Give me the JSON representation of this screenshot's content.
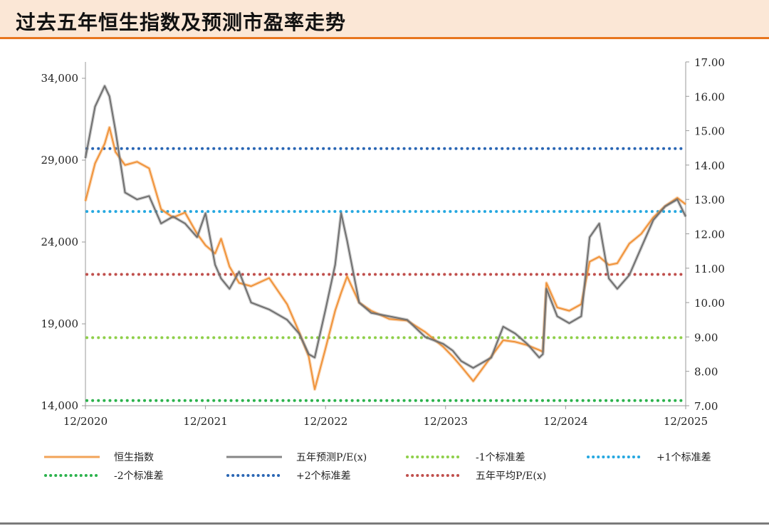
{
  "title": "过去五年恒生指数及预测市盈率走势",
  "chart_data": {
    "type": "line",
    "x_ticks": [
      "12/2020",
      "12/2021",
      "12/2022",
      "12/2023",
      "12/2024",
      "12/2025"
    ],
    "left_axis": {
      "ylim": [
        14000,
        35000
      ],
      "ticks": [
        "14,000",
        "19,000",
        "24,000",
        "29,000",
        "34,000"
      ],
      "tick_values": [
        14000,
        19000,
        24000,
        29000,
        34000
      ]
    },
    "right_axis": {
      "ylim": [
        7.0,
        17.0
      ],
      "ticks": [
        "7.00",
        "8.00",
        "9.00",
        "10.00",
        "11.00",
        "12.00",
        "13.00",
        "14.00",
        "15.00",
        "16.00",
        "17.00"
      ],
      "tick_values": [
        7,
        8,
        9,
        10,
        11,
        12,
        13,
        14,
        15,
        16,
        17
      ]
    },
    "series": [
      {
        "name": "恒生指数",
        "axis": "left",
        "color": "#f0933a",
        "x": [
          2020.92,
          2021.0,
          2021.08,
          2021.12,
          2021.17,
          2021.25,
          2021.35,
          2021.45,
          2021.55,
          2021.65,
          2021.75,
          2021.85,
          2021.92,
          2022.0,
          2022.05,
          2022.12,
          2022.2,
          2022.3,
          2022.45,
          2022.6,
          2022.7,
          2022.78,
          2022.83,
          2022.92,
          2023.0,
          2023.05,
          2023.1,
          2023.2,
          2023.3,
          2023.45,
          2023.6,
          2023.75,
          2023.9,
          2023.98,
          2024.05,
          2024.15,
          2024.3,
          2024.4,
          2024.5,
          2024.6,
          2024.7,
          2024.73,
          2024.76,
          2024.85,
          2024.95,
          2025.05,
          2025.12,
          2025.2,
          2025.28,
          2025.35,
          2025.45,
          2025.55,
          2025.65,
          2025.75,
          2025.85,
          2025.92
        ],
        "values": [
          26500,
          28800,
          30000,
          31000,
          29500,
          28700,
          28900,
          28500,
          26000,
          25500,
          25800,
          24500,
          23800,
          23300,
          24200,
          22500,
          21500,
          21300,
          21800,
          20200,
          18500,
          17000,
          15000,
          17500,
          19800,
          20900,
          21900,
          20300,
          19800,
          19300,
          19200,
          18500,
          17600,
          17000,
          16400,
          15500,
          17000,
          18000,
          17900,
          17700,
          17400,
          17300,
          21500,
          20000,
          19800,
          20200,
          22800,
          23100,
          22600,
          22700,
          23900,
          24500,
          25500,
          26200,
          26700,
          26300
        ]
      },
      {
        "name": "五年预测P/E(x)",
        "axis": "right",
        "color": "#707070",
        "x": [
          2020.92,
          2021.0,
          2021.08,
          2021.12,
          2021.17,
          2021.25,
          2021.35,
          2021.45,
          2021.55,
          2021.65,
          2021.75,
          2021.85,
          2021.92,
          2022.0,
          2022.05,
          2022.12,
          2022.2,
          2022.3,
          2022.45,
          2022.6,
          2022.7,
          2022.78,
          2022.83,
          2022.92,
          2023.0,
          2023.05,
          2023.1,
          2023.2,
          2023.3,
          2023.45,
          2023.6,
          2023.75,
          2023.9,
          2023.98,
          2024.05,
          2024.15,
          2024.3,
          2024.4,
          2024.5,
          2024.6,
          2024.7,
          2024.73,
          2024.76,
          2024.85,
          2024.95,
          2025.05,
          2025.12,
          2025.2,
          2025.28,
          2025.35,
          2025.45,
          2025.55,
          2025.65,
          2025.75,
          2025.85,
          2025.92
        ],
        "values": [
          14.2,
          15.7,
          16.3,
          16.0,
          15.0,
          13.2,
          13.0,
          13.1,
          12.3,
          12.5,
          12.3,
          11.9,
          12.6,
          11.1,
          10.7,
          10.4,
          10.9,
          10.0,
          9.8,
          9.5,
          9.1,
          8.5,
          8.4,
          9.8,
          11.1,
          12.6,
          11.8,
          10.0,
          9.7,
          9.6,
          9.5,
          9.0,
          8.8,
          8.6,
          8.3,
          8.1,
          8.4,
          9.3,
          9.1,
          8.8,
          8.4,
          8.5,
          10.4,
          9.6,
          9.4,
          9.6,
          11.9,
          12.3,
          10.7,
          10.4,
          10.8,
          11.6,
          12.4,
          12.8,
          13.0,
          12.5
        ]
      }
    ],
    "reference_lines": [
      {
        "name": "-1个标准差",
        "value": 8.98,
        "color": "#8fcf4a"
      },
      {
        "name": "+1个标准差",
        "value": 12.65,
        "color": "#26a8e0"
      },
      {
        "name": "-2个标准差",
        "value": 7.15,
        "color": "#2bb24c"
      },
      {
        "name": "+2个标准差",
        "value": 14.48,
        "color": "#2a66b4"
      },
      {
        "name": "五年平均P/E(x)",
        "value": 10.82,
        "color": "#c0504d"
      }
    ],
    "grid": false,
    "legend_position": "bottom"
  }
}
